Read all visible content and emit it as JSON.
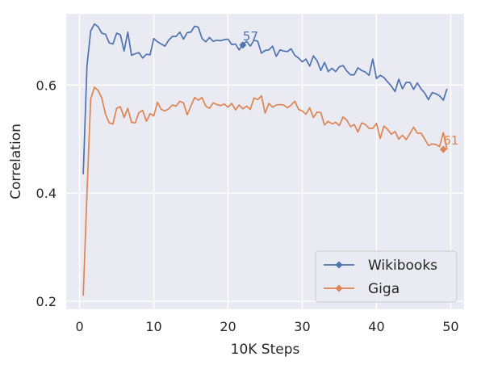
{
  "chart_data": {
    "type": "line",
    "xlabel": "10K Steps",
    "ylabel": "Correlation",
    "xlim": [
      -1.8,
      51.8
    ],
    "ylim": [
      0.185,
      0.732
    ],
    "xticks": [
      0,
      10,
      20,
      30,
      40,
      50
    ],
    "yticks": [
      0.2,
      0.4,
      0.6
    ],
    "ytick_labels": [
      "0.2",
      "0.4",
      "0.6"
    ],
    "grid": true,
    "background": "#eaeaf2",
    "legend_position": "lower-right",
    "x": [
      0.5,
      1,
      1.5,
      2,
      2.5,
      3,
      3.5,
      4,
      4.5,
      5,
      5.5,
      6,
      6.5,
      7,
      7.5,
      8,
      8.5,
      9,
      9.5,
      10,
      10.5,
      11,
      11.5,
      12,
      12.5,
      13,
      13.5,
      14,
      14.5,
      15,
      15.5,
      16,
      16.5,
      17,
      17.5,
      18,
      18.5,
      19,
      19.5,
      20,
      20.5,
      21,
      21.5,
      22,
      22.5,
      23,
      23.5,
      24,
      24.5,
      25,
      25.5,
      26,
      26.5,
      27,
      27.5,
      28,
      28.5,
      29,
      29.5,
      30,
      30.5,
      31,
      31.5,
      32,
      32.5,
      33,
      33.5,
      34,
      34.5,
      35,
      35.5,
      36,
      36.5,
      37,
      37.5,
      38,
      38.5,
      39,
      39.5,
      40,
      40.5,
      41,
      41.5,
      42,
      42.5,
      43,
      43.5,
      44,
      44.5,
      45,
      45.5,
      46,
      46.5,
      47,
      47.5,
      48,
      48.5,
      49,
      49.5
    ],
    "series": [
      {
        "name": "Wikibooks",
        "color": "#4c72b0",
        "marker": "diamond",
        "values": [
          0.435,
          0.635,
          0.7,
          0.713,
          0.708,
          0.696,
          0.694,
          0.678,
          0.676,
          0.696,
          0.693,
          0.663,
          0.698,
          0.655,
          0.658,
          0.66,
          0.65,
          0.657,
          0.656,
          0.686,
          0.68,
          0.676,
          0.672,
          0.683,
          0.69,
          0.69,
          0.698,
          0.685,
          0.697,
          0.698,
          0.709,
          0.707,
          0.686,
          0.68,
          0.688,
          0.681,
          0.683,
          0.682,
          0.684,
          0.685,
          0.675,
          0.676,
          0.665,
          0.675,
          0.681,
          0.672,
          0.683,
          0.681,
          0.659,
          0.664,
          0.665,
          0.672,
          0.653,
          0.665,
          0.663,
          0.662,
          0.667,
          0.655,
          0.65,
          0.643,
          0.648,
          0.635,
          0.654,
          0.645,
          0.627,
          0.642,
          0.625,
          0.631,
          0.625,
          0.634,
          0.636,
          0.626,
          0.619,
          0.619,
          0.632,
          0.627,
          0.624,
          0.618,
          0.648,
          0.612,
          0.618,
          0.614,
          0.606,
          0.598,
          0.588,
          0.611,
          0.593,
          0.605,
          0.605,
          0.592,
          0.604,
          0.593,
          0.585,
          0.573,
          0.586,
          0.584,
          0.58,
          0.572,
          0.593
        ]
      },
      {
        "name": "Giga",
        "color": "#dd8452",
        "marker": "diamond",
        "values": [
          0.21,
          0.4,
          0.574,
          0.596,
          0.59,
          0.576,
          0.546,
          0.53,
          0.528,
          0.557,
          0.56,
          0.54,
          0.557,
          0.531,
          0.53,
          0.549,
          0.553,
          0.533,
          0.547,
          0.543,
          0.568,
          0.555,
          0.552,
          0.556,
          0.563,
          0.561,
          0.57,
          0.567,
          0.545,
          0.561,
          0.577,
          0.572,
          0.577,
          0.561,
          0.557,
          0.567,
          0.564,
          0.562,
          0.565,
          0.559,
          0.566,
          0.554,
          0.563,
          0.556,
          0.561,
          0.555,
          0.576,
          0.573,
          0.58,
          0.548,
          0.566,
          0.559,
          0.563,
          0.564,
          0.563,
          0.558,
          0.563,
          0.57,
          0.555,
          0.552,
          0.546,
          0.558,
          0.54,
          0.55,
          0.549,
          0.526,
          0.533,
          0.528,
          0.531,
          0.525,
          0.541,
          0.535,
          0.523,
          0.527,
          0.513,
          0.53,
          0.527,
          0.52,
          0.52,
          0.529,
          0.501,
          0.524,
          0.518,
          0.509,
          0.514,
          0.5,
          0.507,
          0.499,
          0.51,
          0.522,
          0.511,
          0.511,
          0.5,
          0.488,
          0.491,
          0.49,
          0.486,
          0.512,
          0.481
        ]
      }
    ],
    "annotations": [
      {
        "series": "Wikibooks",
        "x": 22,
        "y": 0.674,
        "text": "57",
        "color": "#4c72b0"
      },
      {
        "series": "Giga",
        "x": 49,
        "y": 0.481,
        "text": "61",
        "color": "#dd8452"
      }
    ]
  }
}
